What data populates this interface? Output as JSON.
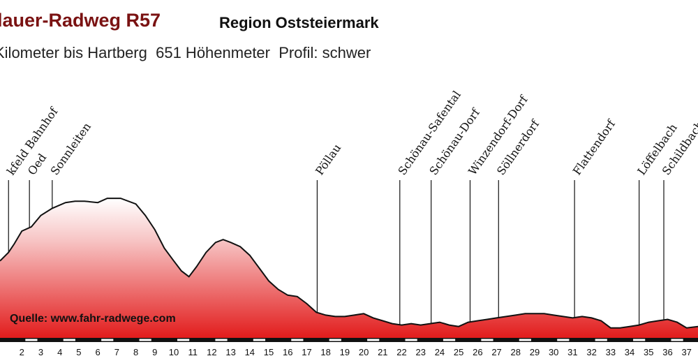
{
  "header": {
    "title": "lauer-Radweg R57",
    "region": "Region Oststeiermark",
    "info_km": "Kilometer bis Hartberg",
    "info_hm": "651 Höhenmeter",
    "info_profile": "Profil: schwer"
  },
  "source_label": "Quelle: www.fahr-radwege.com",
  "chart_data": {
    "type": "area",
    "title": "",
    "xlabel": "",
    "ylabel": "",
    "x_ticks": [
      2,
      3,
      4,
      5,
      6,
      7,
      8,
      9,
      10,
      11,
      12,
      13,
      14,
      15,
      16,
      17,
      18,
      19,
      20,
      21,
      22,
      23,
      24,
      25,
      26,
      27,
      28,
      29,
      30,
      31,
      32,
      33,
      34,
      35,
      36,
      37
    ],
    "tick_labels": [
      "2",
      "3",
      "4",
      "5",
      "6",
      "7",
      "8",
      "9",
      "10",
      "11",
      "12",
      "13",
      "14",
      "15",
      "16",
      "17",
      "18",
      "19",
      "20",
      "21",
      "22",
      "23",
      "24",
      "25",
      "26",
      "27",
      "28",
      "29",
      "30",
      "31",
      "32",
      "33",
      "34",
      "35",
      "36",
      "37"
    ],
    "xlim": [
      0.85,
      37.6
    ],
    "ylim": [
      0,
      100
    ],
    "series": [
      {
        "x": [
          0.85,
          1.3,
          1.6,
          2.0,
          2.5,
          3.0,
          3.6,
          4.3,
          4.8,
          5.3,
          6.0,
          6.5,
          7.2,
          8.0,
          8.5,
          9.0,
          9.5,
          10.0,
          10.4,
          10.8,
          11.2,
          11.7,
          12.2,
          12.6,
          13.0,
          13.5,
          14.0,
          14.5,
          15.0,
          15.5,
          16.0,
          16.5,
          17.0,
          17.5,
          18.0,
          18.5,
          19.0,
          19.5,
          20.0,
          20.5,
          21.0,
          21.5,
          22.0,
          22.5,
          23.0,
          23.5,
          24.0,
          24.5,
          25.0,
          25.5,
          26.0,
          26.5,
          27.0,
          27.5,
          28.0,
          28.5,
          29.0,
          29.5,
          30.0,
          30.5,
          31.0,
          31.5,
          32.0,
          32.5,
          33.0,
          33.5,
          34.0,
          34.5,
          35.0,
          35.5,
          36.0,
          36.5,
          37.0,
          37.6
        ],
        "y": [
          54,
          60,
          66,
          75,
          78,
          86,
          91,
          95,
          96,
          96,
          95,
          98,
          98,
          94,
          86,
          76,
          63,
          54,
          47,
          43,
          50,
          60,
          67,
          69,
          67,
          64,
          58,
          49,
          40,
          34,
          30,
          29,
          24,
          18,
          16,
          15,
          15,
          16,
          17,
          14,
          12,
          10,
          9,
          10,
          9,
          10,
          11,
          9,
          8,
          11,
          12,
          13,
          14,
          15,
          16,
          17,
          17,
          17,
          16,
          15,
          14,
          15,
          14,
          12,
          7,
          7,
          8,
          9,
          11,
          12,
          13,
          11,
          7,
          8
        ]
      }
    ],
    "places": [
      {
        "name": "kfeld Bahnhof",
        "km": 1.3
      },
      {
        "name": "Oed",
        "km": 2.4
      },
      {
        "name": "Sonnleiten",
        "km": 3.6
      },
      {
        "name": "Pöllau",
        "km": 17.55
      },
      {
        "name": "Schönau-Safental",
        "km": 21.9
      },
      {
        "name": "Schönau-Dorf",
        "km": 23.55
      },
      {
        "name": "Winzendorf-Dorf",
        "km": 25.6
      },
      {
        "name": "Söllnerdorf",
        "km": 27.1
      },
      {
        "name": "Flattendorf",
        "km": 31.1
      },
      {
        "name": "Löffelbach",
        "km": 34.5
      },
      {
        "name": "Schildbach",
        "km": 35.8
      }
    ],
    "colors": {
      "fill_top": "#ffffff",
      "fill_bottom": "#e21c1c",
      "line": "#111111",
      "axis_band_dark": "#111111",
      "axis_band_light": "#ffffff"
    }
  }
}
